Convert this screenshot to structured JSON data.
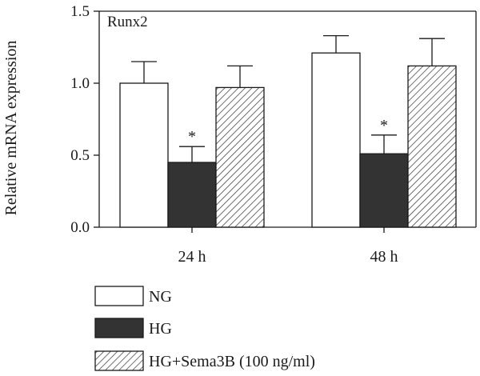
{
  "chart_data": {
    "type": "bar",
    "annotation": "Runx2",
    "ylabel": "Relative mRNA expression",
    "xlabel": "",
    "categories": [
      "24 h",
      "48 h"
    ],
    "ylim": [
      0,
      1.5
    ],
    "yticks": [
      "0.0",
      "0.5",
      "1.0",
      "1.5"
    ],
    "ytick_values": [
      0,
      0.5,
      1.0,
      1.5
    ],
    "series": [
      {
        "name": "NG",
        "values": [
          1.0,
          1.21
        ],
        "errors": [
          0.15,
          0.12
        ],
        "fill": "white",
        "significance": [
          "",
          ""
        ]
      },
      {
        "name": "HG",
        "values": [
          0.45,
          0.51
        ],
        "errors": [
          0.11,
          0.13
        ],
        "fill": "#333333",
        "significance": [
          "*",
          "*"
        ]
      },
      {
        "name": "HG+Sema3B (100 ng/ml)",
        "values": [
          0.97,
          1.12
        ],
        "errors": [
          0.15,
          0.19
        ],
        "fill": "hatched",
        "significance": [
          "",
          ""
        ]
      }
    ],
    "legend_position": "bottom",
    "grid": false
  }
}
